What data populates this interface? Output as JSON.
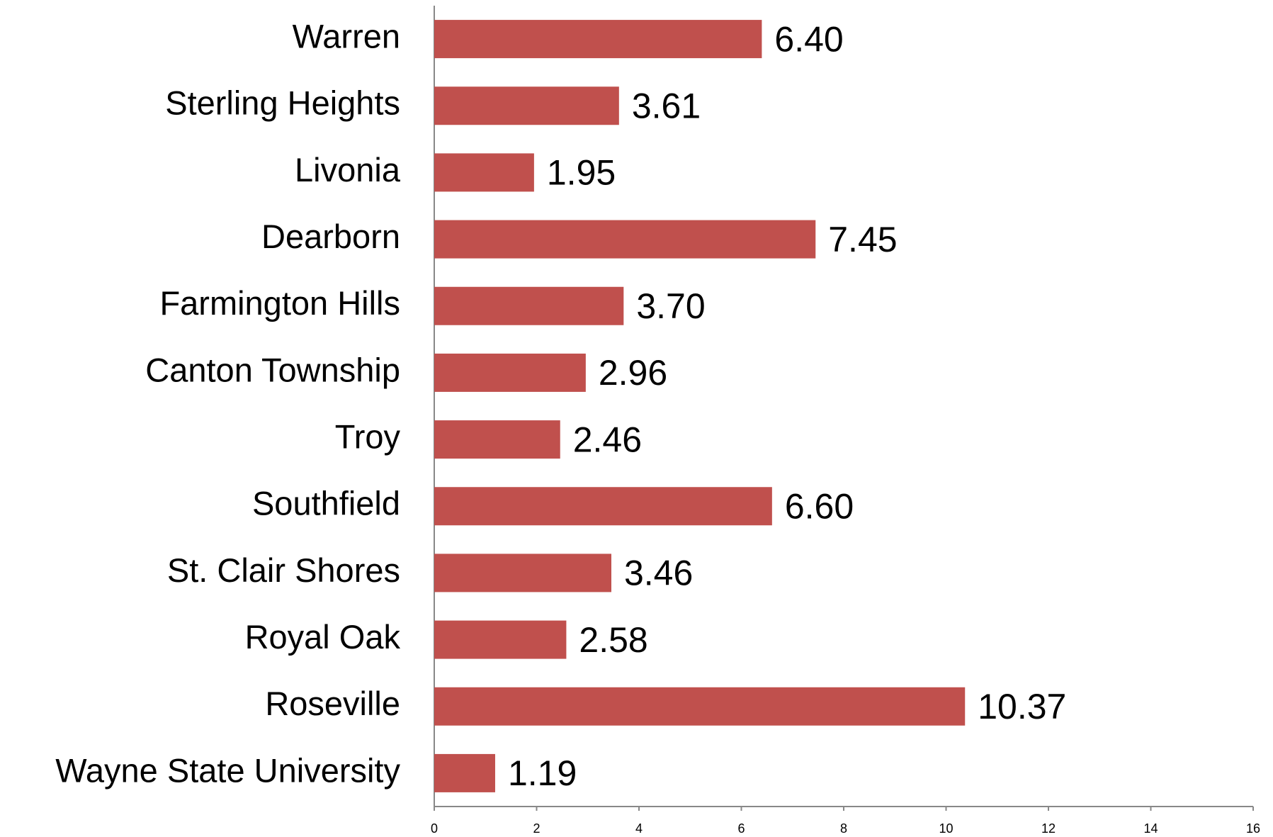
{
  "chart_data": {
    "type": "barh",
    "categories": [
      "Warren",
      "Sterling Heights",
      "Livonia",
      "Dearborn",
      "Farmington Hills",
      "Canton Township",
      "Troy",
      "Southfield",
      "St. Clair Shores",
      "Royal Oak",
      "Roseville",
      "Wayne State University"
    ],
    "values": [
      6.4,
      3.61,
      1.95,
      7.45,
      3.7,
      2.96,
      2.46,
      6.6,
      3.46,
      2.58,
      10.37,
      1.19
    ],
    "value_labels": [
      "6.40",
      "3.61",
      "1.95",
      "7.45",
      "3.70",
      "2.96",
      "2.46",
      "6.60",
      "3.46",
      "2.58",
      "10.37",
      "1.19"
    ],
    "color": "#c0504d",
    "xlim": [
      0,
      16
    ],
    "xticks": [
      0,
      2,
      4,
      6,
      8,
      10,
      12,
      14,
      16
    ],
    "grid": false
  }
}
